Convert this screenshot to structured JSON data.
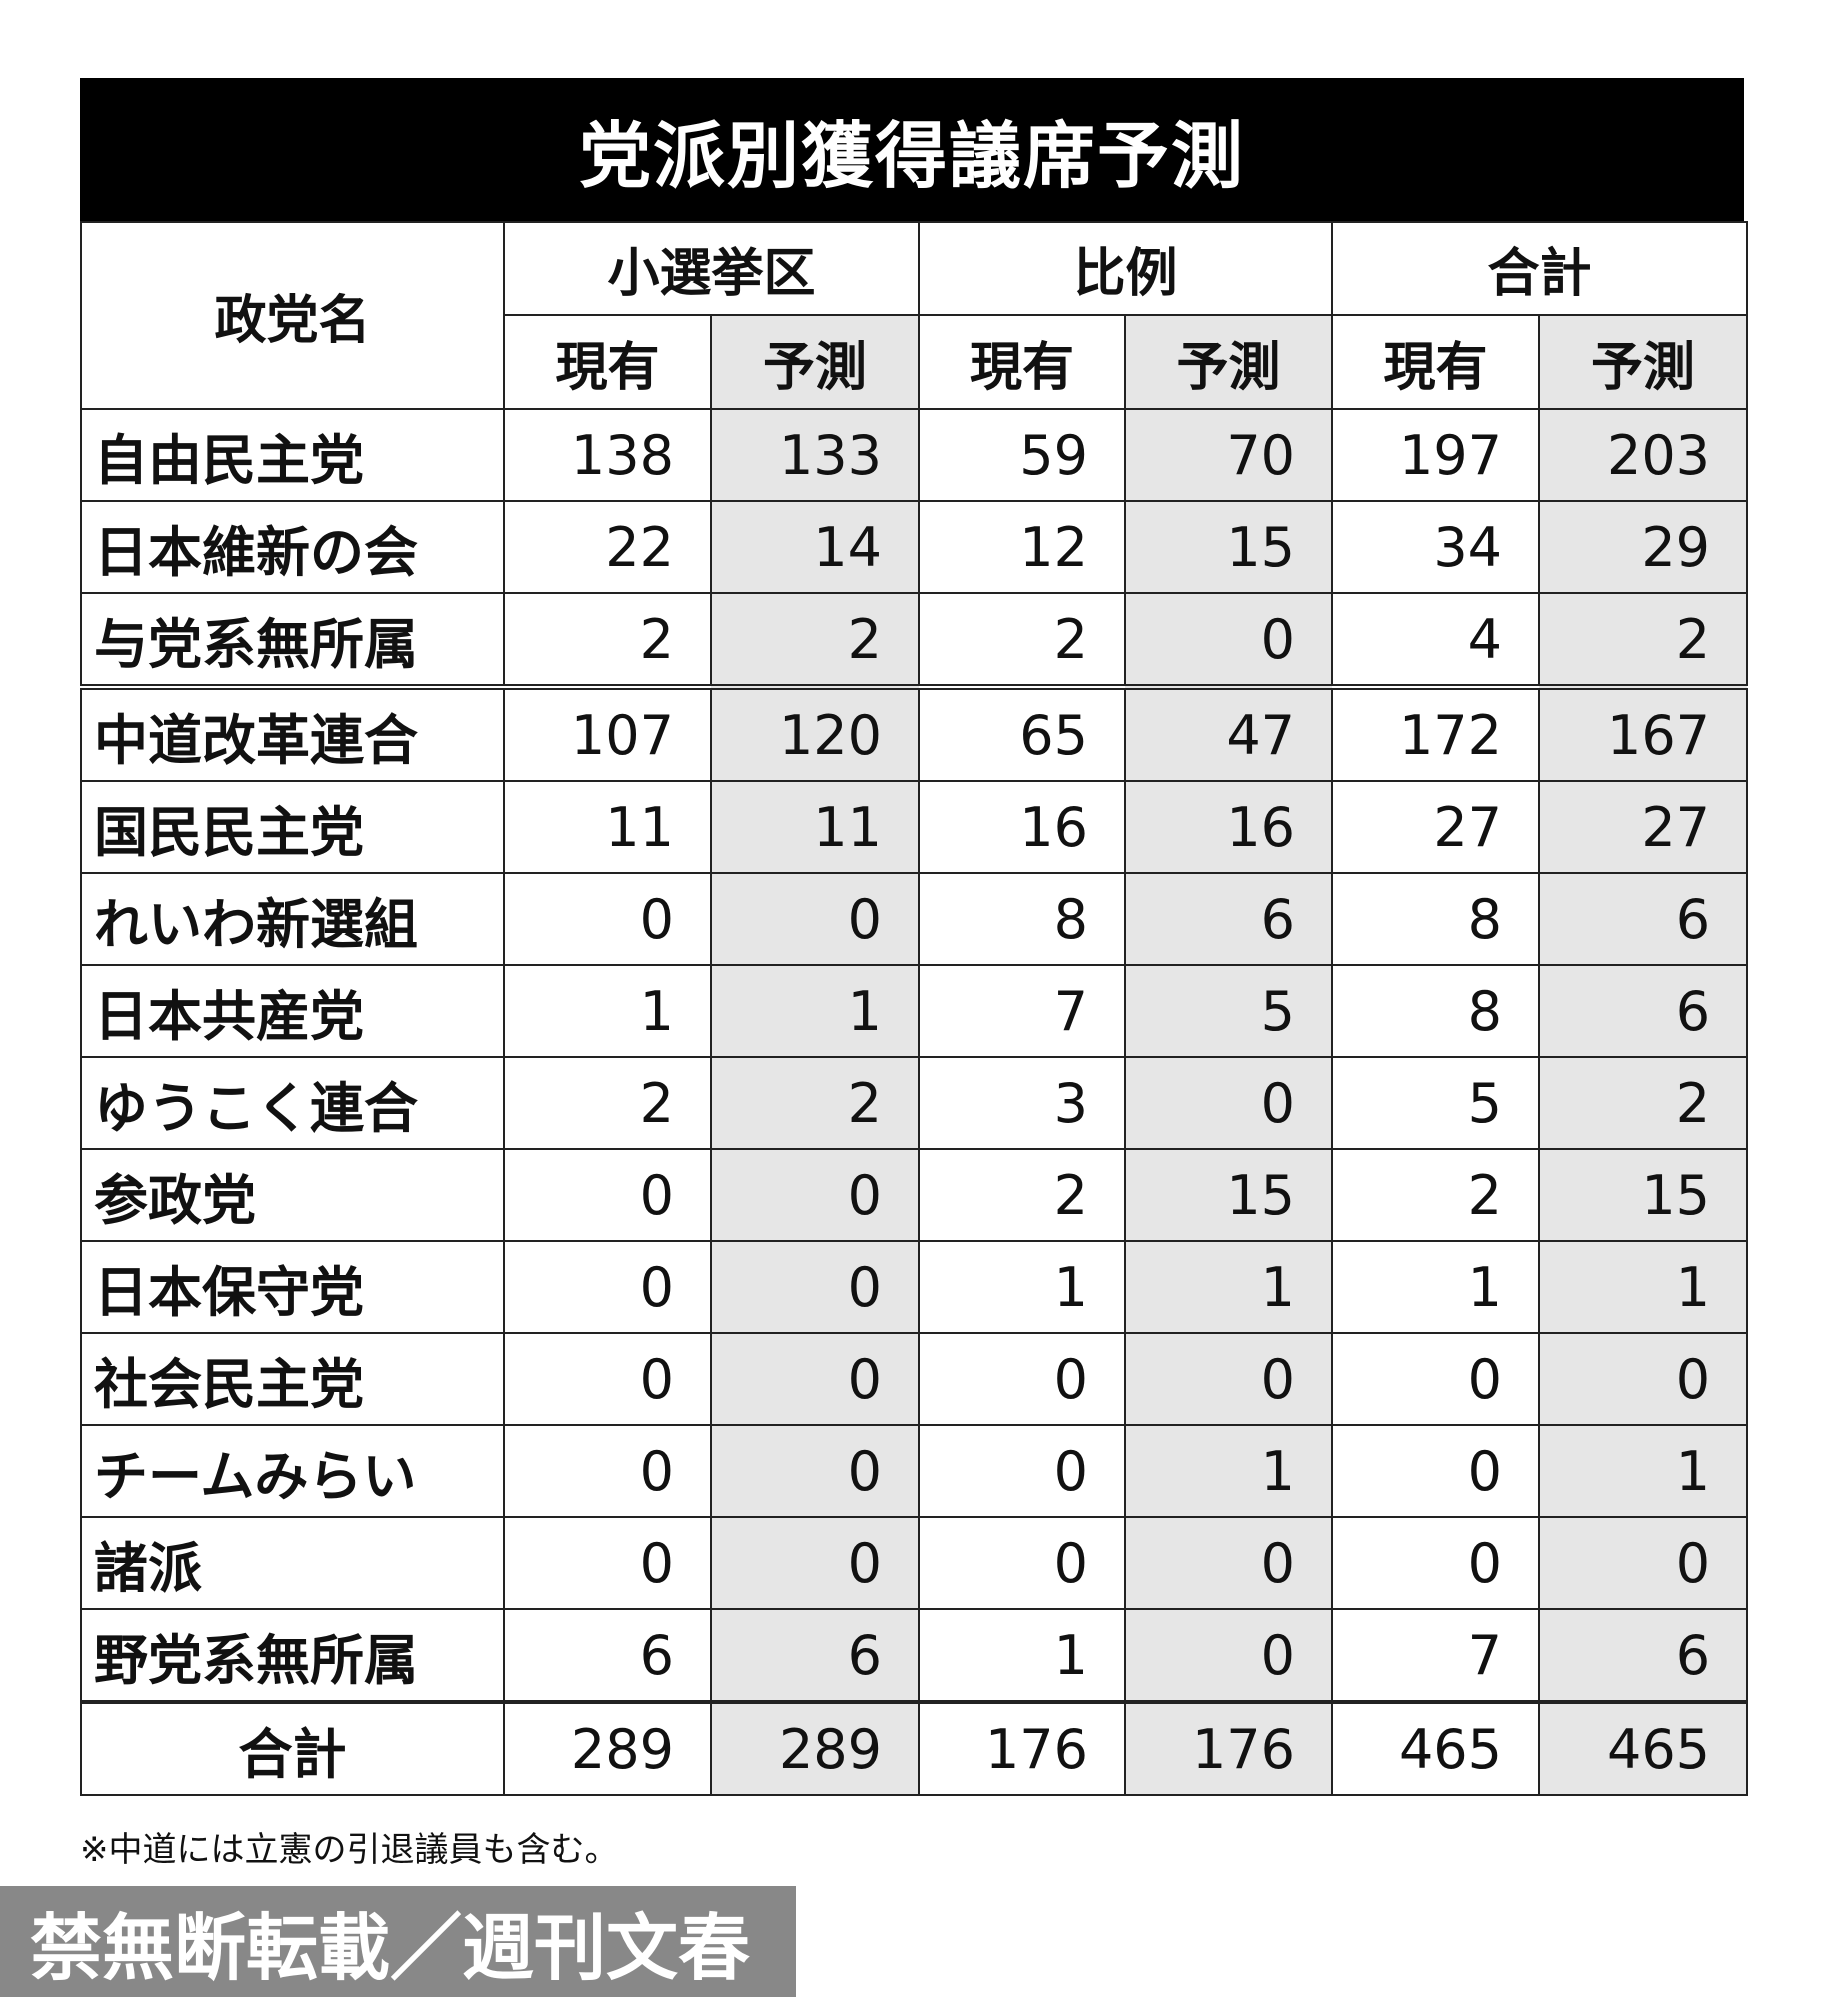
{
  "title": "党派別獲得議席予測",
  "headers": {
    "party": "政党名",
    "groups": [
      "小選挙区",
      "比例",
      "合計"
    ],
    "sub": [
      "現有",
      "予測"
    ]
  },
  "rows": [
    {
      "name": "自由民主党",
      "values": [
        "138",
        "133",
        "59",
        "70",
        "197",
        "203"
      ]
    },
    {
      "name": "日本維新の会",
      "values": [
        "22",
        "14",
        "12",
        "15",
        "34",
        "29"
      ]
    },
    {
      "name": "与党系無所属",
      "values": [
        "2",
        "2",
        "2",
        "0",
        "4",
        "2"
      ]
    },
    {
      "name": "中道改革連合",
      "values": [
        "107",
        "120",
        "65",
        "47",
        "172",
        "167"
      ]
    },
    {
      "name": "国民民主党",
      "values": [
        "11",
        "11",
        "16",
        "16",
        "27",
        "27"
      ]
    },
    {
      "name": "れいわ新選組",
      "values": [
        "0",
        "0",
        "8",
        "6",
        "8",
        "6"
      ]
    },
    {
      "name": "日本共産党",
      "values": [
        "1",
        "1",
        "7",
        "5",
        "8",
        "6"
      ]
    },
    {
      "name": "ゆうこく連合",
      "values": [
        "2",
        "2",
        "3",
        "0",
        "5",
        "2"
      ]
    },
    {
      "name": "参政党",
      "values": [
        "0",
        "0",
        "2",
        "15",
        "2",
        "15"
      ]
    },
    {
      "name": "日本保守党",
      "values": [
        "0",
        "0",
        "1",
        "1",
        "1",
        "1"
      ]
    },
    {
      "name": "社会民主党",
      "values": [
        "0",
        "0",
        "0",
        "0",
        "0",
        "0"
      ]
    },
    {
      "name": "チームみらい",
      "values": [
        "0",
        "0",
        "0",
        "1",
        "0",
        "1"
      ]
    },
    {
      "name": "諸派",
      "values": [
        "0",
        "0",
        "0",
        "0",
        "0",
        "0"
      ]
    },
    {
      "name": "野党系無所属",
      "values": [
        "6",
        "6",
        "1",
        "0",
        "7",
        "6"
      ]
    }
  ],
  "total": {
    "name": "合計",
    "values": [
      "289",
      "289",
      "176",
      "176",
      "465",
      "465"
    ]
  },
  "footnote": "※中道には立憲の引退議員も含む。",
  "watermark": "禁無断転載／週刊文春"
}
